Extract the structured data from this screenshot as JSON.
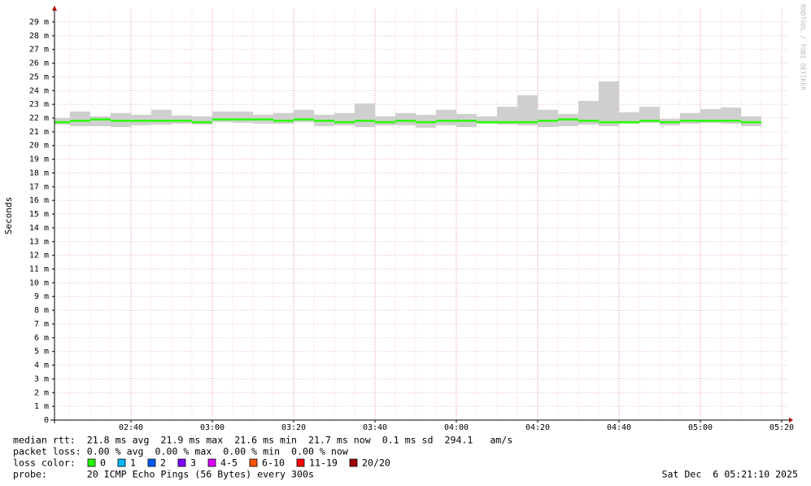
{
  "chart_data": {
    "type": "smokeping",
    "y_label": "Seconds",
    "watermark": "RRDTOOL / TOBI OETIKER",
    "x": [
      145,
      150,
      155,
      160,
      165,
      170,
      175,
      180,
      185,
      190,
      195,
      200,
      205,
      210,
      215,
      220,
      225,
      230,
      235,
      240,
      245,
      250,
      255,
      260,
      265,
      270,
      275,
      280,
      285,
      290,
      295,
      300,
      305,
      310,
      315
    ],
    "median": [
      21.7,
      21.8,
      21.9,
      21.8,
      21.8,
      21.8,
      21.8,
      21.7,
      21.9,
      21.9,
      21.9,
      21.8,
      21.9,
      21.8,
      21.7,
      21.8,
      21.7,
      21.8,
      21.7,
      21.8,
      21.8,
      21.7,
      21.7,
      21.7,
      21.8,
      21.9,
      21.8,
      21.7,
      21.7,
      21.8,
      21.7,
      21.8,
      21.8,
      21.8,
      21.7
    ],
    "smoke_low": [
      21.53,
      21.41,
      21.41,
      21.35,
      21.47,
      21.53,
      21.59,
      21.53,
      21.71,
      21.65,
      21.59,
      21.59,
      21.71,
      21.41,
      21.47,
      21.35,
      21.47,
      21.47,
      21.3,
      21.47,
      21.35,
      21.59,
      21.53,
      21.47,
      21.35,
      21.41,
      21.53,
      21.41,
      21.59,
      21.65,
      21.47,
      21.59,
      21.65,
      21.59,
      21.41
    ],
    "smoke_high": [
      22.0,
      22.48,
      22.12,
      22.37,
      22.24,
      22.6,
      22.18,
      22.12,
      22.48,
      22.48,
      22.24,
      22.37,
      22.6,
      22.24,
      22.37,
      23.06,
      22.12,
      22.37,
      22.24,
      22.6,
      22.3,
      22.12,
      22.82,
      23.66,
      22.6,
      22.3,
      23.25,
      24.67,
      22.42,
      22.82,
      21.94,
      22.37,
      22.65,
      22.77,
      22.12
    ],
    "smoke_color": "#cfcfcf",
    "xlim": [
      141.2,
      321.4
    ],
    "ylim": [
      0,
      29.9
    ],
    "xticks": [
      {
        "value": 160,
        "label": "02:40"
      },
      {
        "value": 180,
        "label": "03:00"
      },
      {
        "value": 200,
        "label": "03:20"
      },
      {
        "value": 220,
        "label": "03:40"
      },
      {
        "value": 240,
        "label": "04:00"
      },
      {
        "value": 260,
        "label": "04:20"
      },
      {
        "value": 280,
        "label": "04:40"
      },
      {
        "value": 300,
        "label": "05:00"
      },
      {
        "value": 320,
        "label": "05:20"
      }
    ],
    "yticks": [
      0,
      {
        "value": 1,
        "label": "1 m"
      },
      {
        "value": 2,
        "label": "2 m"
      },
      {
        "value": 3,
        "label": "3 m"
      },
      {
        "value": 4,
        "label": "4 m"
      },
      {
        "value": 5,
        "label": "5 m"
      },
      {
        "value": 6,
        "label": "6 m"
      },
      {
        "value": 7,
        "label": "7 m"
      },
      {
        "value": 8,
        "label": "8 m"
      },
      {
        "value": 9,
        "label": "9 m"
      },
      {
        "value": 10,
        "label": "10 m"
      },
      {
        "value": 11,
        "label": "11 m"
      },
      {
        "value": 12,
        "label": "12 m"
      },
      {
        "value": 13,
        "label": "13 m"
      },
      {
        "value": 14,
        "label": "14 m"
      },
      {
        "value": 15,
        "label": "15 m"
      },
      {
        "value": 16,
        "label": "16 m"
      },
      {
        "value": 17,
        "label": "17 m"
      },
      {
        "value": 18,
        "label": "18 m"
      },
      {
        "value": 19,
        "label": "19 m"
      },
      {
        "value": 20,
        "label": "20 m"
      },
      {
        "value": 21,
        "label": "21 m"
      },
      {
        "value": 22,
        "label": "22 m"
      },
      {
        "value": 23,
        "label": "23 m"
      },
      {
        "value": 24,
        "label": "24 m"
      },
      {
        "value": 25,
        "label": "25 m"
      },
      {
        "value": 26,
        "label": "26 m"
      },
      {
        "value": 27,
        "label": "27 m"
      },
      {
        "value": 28,
        "label": "28 m"
      },
      {
        "value": 29,
        "label": "29 m"
      }
    ],
    "grid": true
  },
  "footer": {
    "median_rtt": "median rtt:  21.8 ms avg  21.9 ms max  21.6 ms min  21.7 ms now  0.1 ms sd  294.1   am/s",
    "packet_loss": "packet loss: 0.00 % avg  0.00 % max  0.00 % min  0.00 % now",
    "loss_color": {
      "label": "loss color:",
      "items": [
        {
          "label": "0",
          "color": "#26ff00"
        },
        {
          "label": "1",
          "color": "#00b8ff"
        },
        {
          "label": "2",
          "color": "#0059ff"
        },
        {
          "label": "3",
          "color": "#7e00ff"
        },
        {
          "label": "4-5",
          "color": "#dd00ff"
        },
        {
          "label": "6-10",
          "color": "#ff5500"
        },
        {
          "label": "11-19",
          "color": "#ff0000"
        },
        {
          "label": "20/20",
          "color": "#a10000"
        }
      ]
    },
    "probe": "probe:       20 ICMP Echo Pings (56 Bytes) every 300s",
    "timestamp": "Sat Dec  6 05:21:10 2025"
  }
}
